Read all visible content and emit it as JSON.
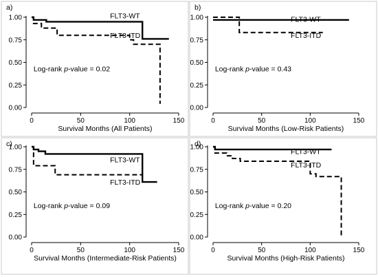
{
  "chart_data": [
    {
      "type": "line",
      "panel_label": "a)",
      "xlabel": "Survival Months (All Patients)",
      "ylabel": "",
      "xlim": [
        0,
        150
      ],
      "ylim": [
        0,
        1
      ],
      "xticks": [
        0,
        50,
        100,
        150
      ],
      "yticks": [
        "0.00",
        "0.25",
        "0.50",
        "0.75",
        "1.00"
      ],
      "annotation": {
        "prefix": "Log-rank ",
        "italic": "p",
        "suffix": "-value = 0.02"
      },
      "series": [
        {
          "name": "FLT3-WT",
          "style": "solid",
          "x": [
            0,
            2,
            2,
            15,
            15,
            113,
            113,
            140
          ],
          "y": [
            1.0,
            1.0,
            0.97,
            0.97,
            0.95,
            0.95,
            0.76,
            0.76
          ]
        },
        {
          "name": "FLT3-ITD",
          "style": "dashed",
          "x": [
            0,
            2,
            2,
            10,
            10,
            26,
            26,
            100,
            100,
            104,
            104,
            131,
            131
          ],
          "y": [
            1.0,
            1.0,
            0.93,
            0.93,
            0.88,
            0.88,
            0.8,
            0.8,
            0.75,
            0.75,
            0.7,
            0.7,
            0.04
          ]
        }
      ]
    },
    {
      "type": "line",
      "panel_label": "b)",
      "xlabel": "Survival Months (Low-Risk Patients)",
      "ylabel": "",
      "xlim": [
        0,
        150
      ],
      "ylim": [
        0,
        1
      ],
      "xticks": [
        0,
        50,
        100,
        150
      ],
      "yticks": [
        "0.00",
        "0.25",
        "0.50",
        "0.75",
        "1.00"
      ],
      "annotation": {
        "prefix": "Log-rank ",
        "italic": "p",
        "suffix": "-value = 0.43"
      },
      "series": [
        {
          "name": "FLT3-WT",
          "style": "solid",
          "x": [
            0,
            140
          ],
          "y": [
            0.97,
            0.97
          ]
        },
        {
          "name": "FLT3-ITD",
          "style": "dashed",
          "x": [
            0,
            27,
            27,
            113
          ],
          "y": [
            1.0,
            1.0,
            0.83,
            0.83
          ]
        }
      ]
    },
    {
      "type": "line",
      "panel_label": "c)",
      "xlabel": "Survival Months (Intermediate-Risk Patients)",
      "ylabel": "",
      "xlim": [
        0,
        150
      ],
      "ylim": [
        0,
        1
      ],
      "xticks": [
        0,
        50,
        100,
        150
      ],
      "yticks": [
        "0.00",
        "0.25",
        "0.50",
        "0.75",
        "1.00"
      ],
      "annotation": {
        "prefix": "Log-rank ",
        "italic": "p",
        "suffix": "-value = 0.09"
      },
      "series": [
        {
          "name": "FLT3-WT",
          "style": "solid",
          "x": [
            0,
            2,
            2,
            7,
            7,
            14,
            14,
            113,
            113,
            128
          ],
          "y": [
            1.0,
            1.0,
            0.97,
            0.97,
            0.95,
            0.95,
            0.92,
            0.92,
            0.61,
            0.61
          ]
        },
        {
          "name": "FLT3-ITD",
          "style": "dashed",
          "x": [
            0,
            2,
            2,
            24,
            24,
            113
          ],
          "y": [
            1.0,
            1.0,
            0.79,
            0.79,
            0.69,
            0.69
          ]
        }
      ]
    },
    {
      "type": "line",
      "panel_label": "d)",
      "xlabel": "Survival Months (High-Risk Patients)",
      "ylabel": "",
      "xlim": [
        0,
        150
      ],
      "ylim": [
        0,
        1
      ],
      "xticks": [
        0,
        50,
        100,
        150
      ],
      "yticks": [
        "0.00",
        "0.25",
        "0.50",
        "0.75",
        "1.00"
      ],
      "annotation": {
        "prefix": "Log-rank ",
        "italic": "p",
        "suffix": "-value = 0.20"
      },
      "series": [
        {
          "name": "FLT3-WT",
          "style": "solid",
          "x": [
            0,
            2,
            2,
            122
          ],
          "y": [
            1.0,
            1.0,
            0.97,
            0.97
          ]
        },
        {
          "name": "FLT3-ITD",
          "style": "dashed",
          "x": [
            0,
            2,
            2,
            14,
            14,
            20,
            20,
            28,
            28,
            100,
            100,
            106,
            106,
            132,
            132
          ],
          "y": [
            1.0,
            1.0,
            0.93,
            0.93,
            0.9,
            0.9,
            0.87,
            0.87,
            0.84,
            0.84,
            0.7,
            0.7,
            0.67,
            0.67,
            0.0
          ]
        }
      ]
    }
  ]
}
